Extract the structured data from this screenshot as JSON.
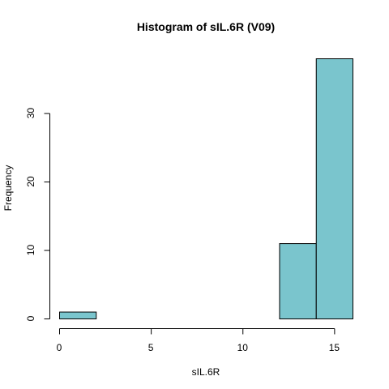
{
  "chart_data": {
    "type": "bar",
    "title": "Histogram of sIL.6R (V09)",
    "xlabel": "sIL.6R",
    "ylabel": "Frequency",
    "bins": [
      {
        "start": 0,
        "end": 2,
        "count": 1
      },
      {
        "start": 2,
        "end": 4,
        "count": 0
      },
      {
        "start": 4,
        "end": 6,
        "count": 0
      },
      {
        "start": 6,
        "end": 8,
        "count": 0
      },
      {
        "start": 8,
        "end": 10,
        "count": 0
      },
      {
        "start": 10,
        "end": 12,
        "count": 0
      },
      {
        "start": 12,
        "end": 14,
        "count": 11
      },
      {
        "start": 14,
        "end": 16,
        "count": 38
      }
    ],
    "xticks": [
      0,
      5,
      10,
      15
    ],
    "yticks": [
      0,
      10,
      20,
      30
    ],
    "xlim": [
      0,
      16
    ],
    "ylim": [
      0,
      38
    ],
    "grid": false,
    "bar_color": "#7AC5CD"
  }
}
